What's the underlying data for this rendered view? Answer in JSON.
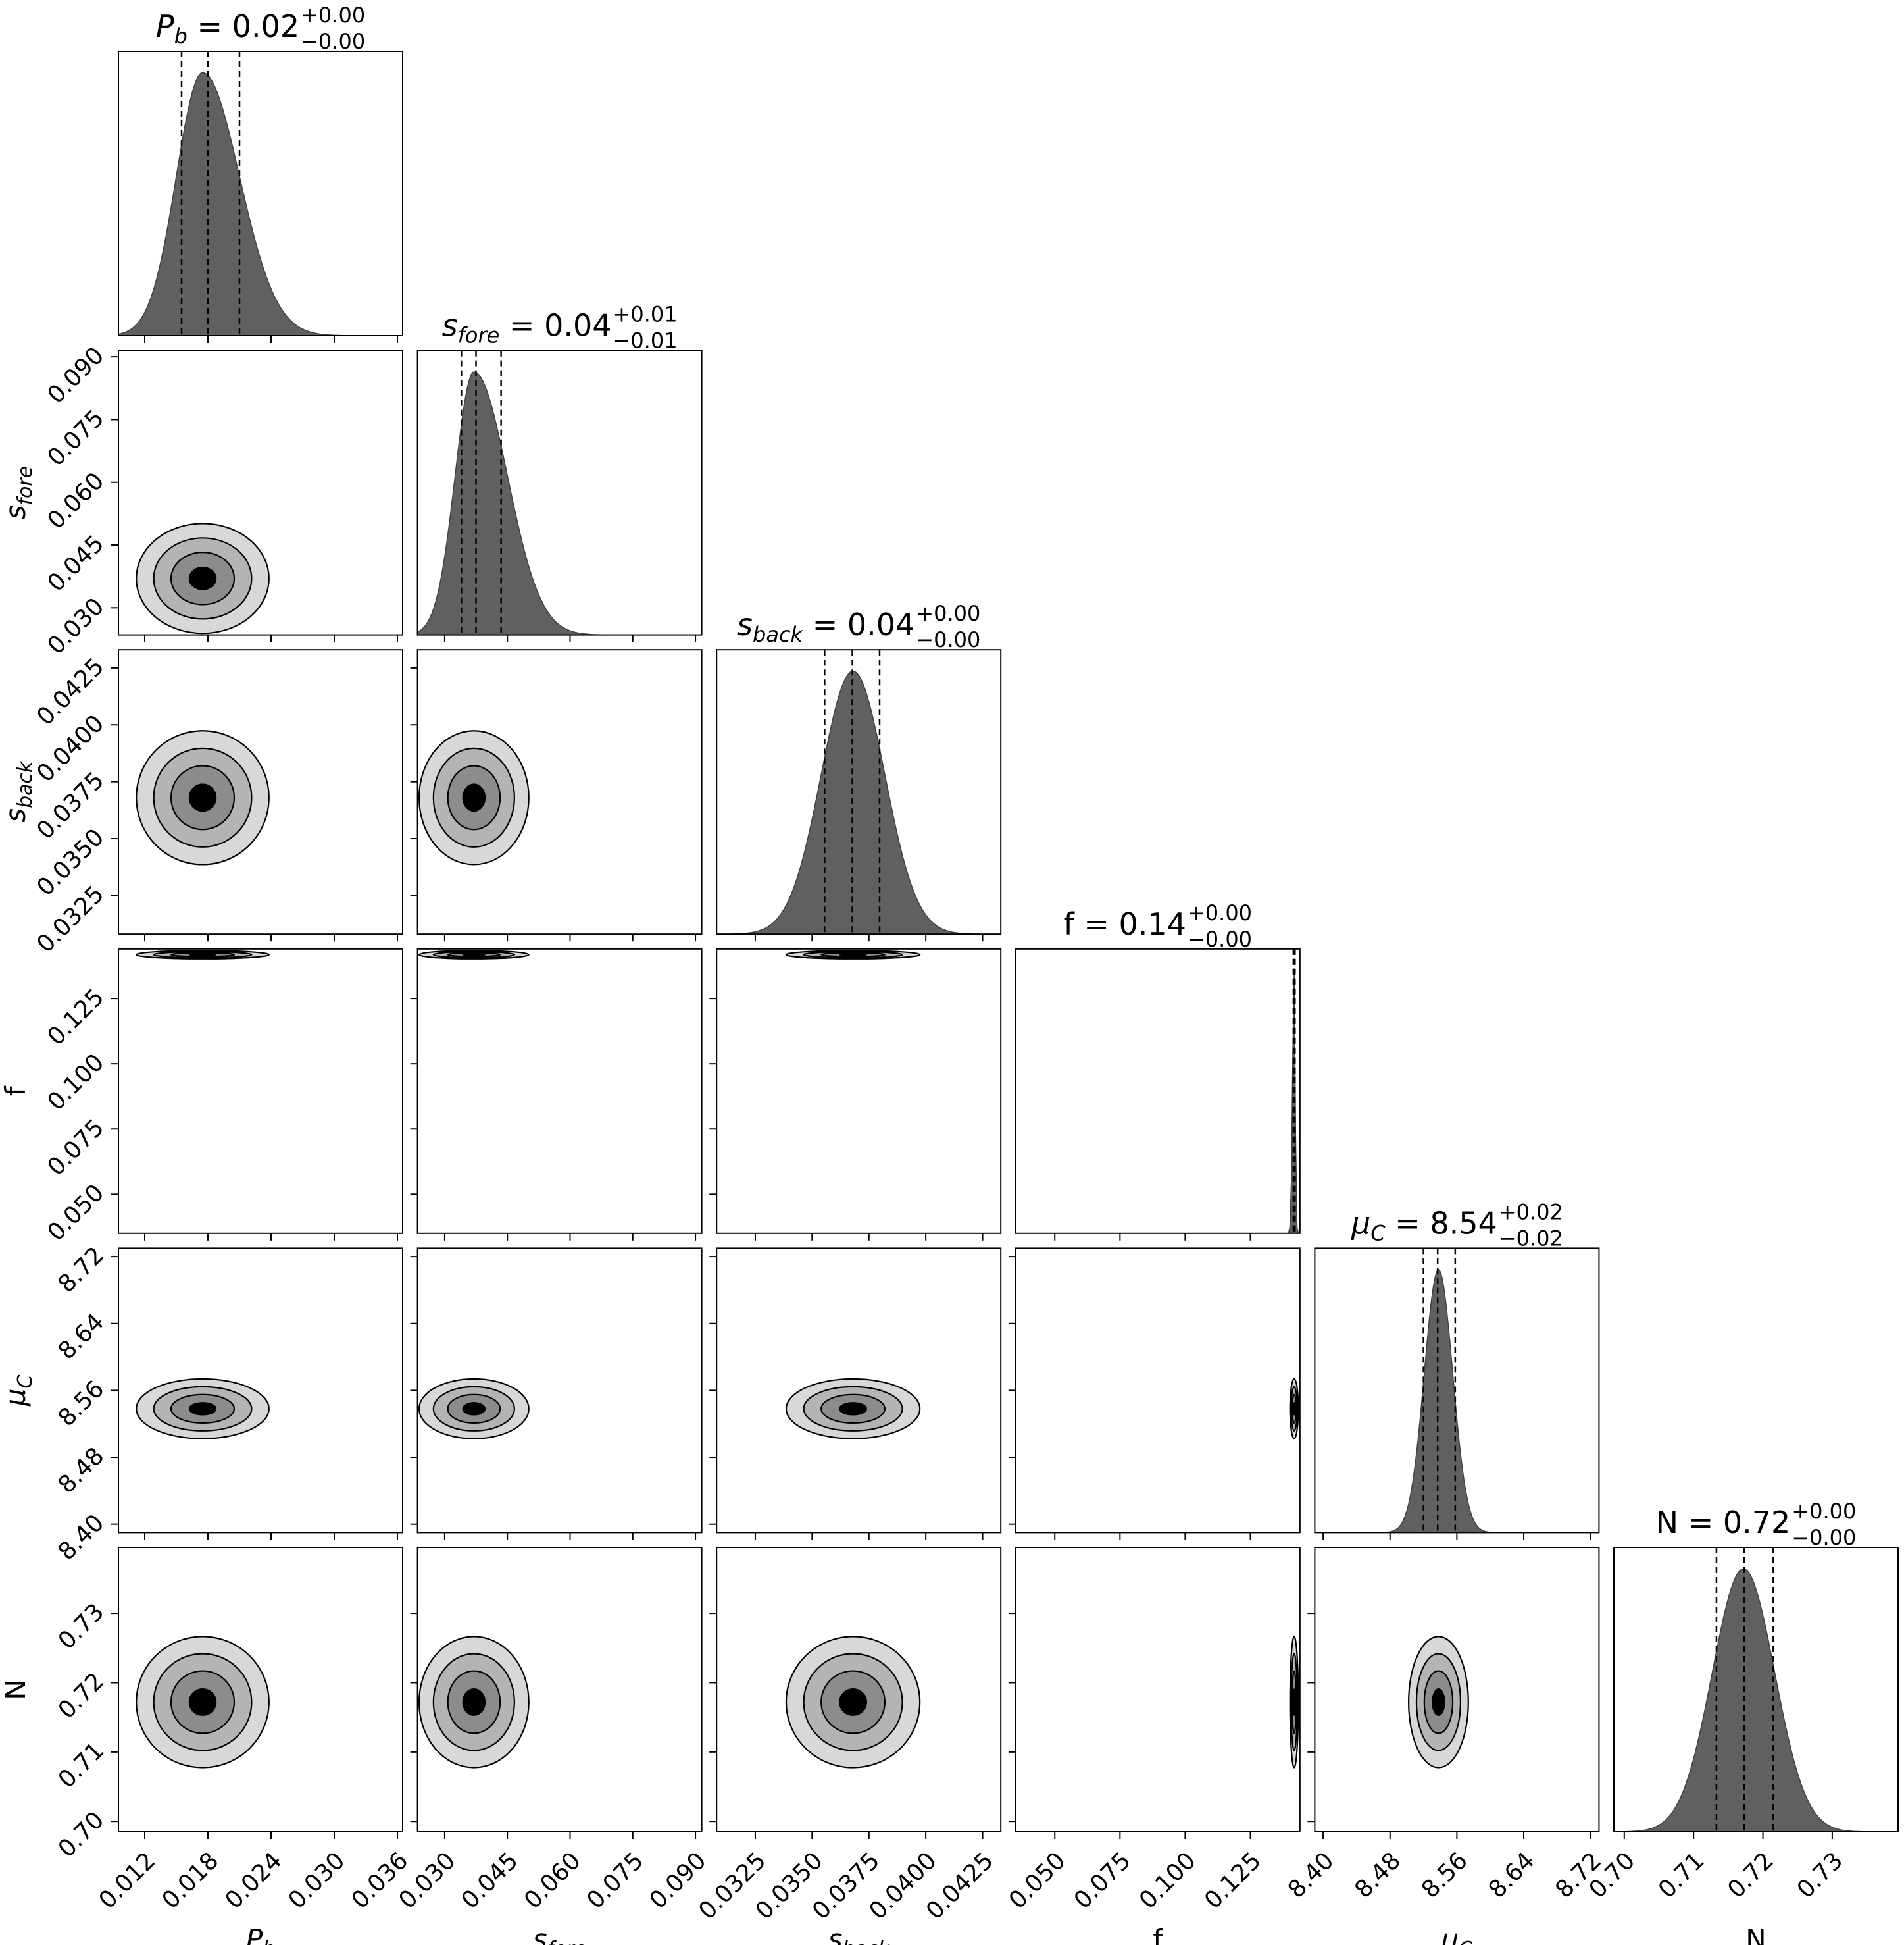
{
  "chart_data": {
    "type": "corner",
    "parameters": [
      {
        "key": "Pb",
        "label_sym": "P",
        "label_sub": "b",
        "title_val": "= 0.02",
        "plus": "+0.00",
        "minus": "−0.00",
        "range": [
          0.0095,
          0.0365
        ],
        "ticks": [
          "0.012",
          "0.018",
          "0.024",
          "0.030",
          "0.036"
        ],
        "tick_values": [
          0.012,
          0.018,
          0.024,
          0.03,
          0.036
        ],
        "quantiles": [
          0.0155,
          0.018,
          0.021
        ],
        "peak": 0.0175,
        "sigma_left": 0.0025,
        "sigma_right": 0.0035
      },
      {
        "key": "sfore",
        "label_sym": "s",
        "label_sub": "fore",
        "title_val": "= 0.04",
        "plus": "+0.01",
        "minus": "−0.01",
        "range": [
          0.0235,
          0.0915
        ],
        "ticks": [
          "0.030",
          "0.045",
          "0.060",
          "0.075",
          "0.090"
        ],
        "tick_values": [
          0.03,
          0.045,
          0.06,
          0.075,
          0.09
        ],
        "quantiles": [
          0.034,
          0.0375,
          0.0435
        ],
        "peak": 0.037,
        "sigma_left": 0.0045,
        "sigma_right": 0.008
      },
      {
        "key": "sback",
        "label_sym": "s",
        "label_sub": "back",
        "title_val": "= 0.04",
        "plus": "+0.00",
        "minus": "−0.00",
        "range": [
          0.0308,
          0.0433
        ],
        "ticks": [
          "0.0325",
          "0.0350",
          "0.0375",
          "0.0400",
          "0.0425"
        ],
        "tick_values": [
          0.0325,
          0.035,
          0.0375,
          0.04,
          0.0425
        ],
        "quantiles": [
          0.03555,
          0.03677,
          0.03797
        ],
        "peak": 0.0368,
        "sigma_left": 0.0014,
        "sigma_right": 0.0014
      },
      {
        "key": "f",
        "label_sym": "f",
        "label_sub": "",
        "title_val": "= 0.14",
        "plus": "+0.00",
        "minus": "−0.00",
        "range": [
          0.035,
          0.144
        ],
        "ticks": [
          "0.050",
          "0.075",
          "0.100",
          "0.125"
        ],
        "tick_values": [
          0.05,
          0.075,
          0.1,
          0.125
        ],
        "quantiles": [
          0.1415,
          0.1418,
          0.1421
        ],
        "peak": 0.1418,
        "sigma_left": 0.0006,
        "sigma_right": 0.0004
      },
      {
        "key": "muC",
        "label_sym": "μ",
        "label_sub": "C",
        "title_val": "= 8.54",
        "plus": "+0.02",
        "minus": "−0.02",
        "range": [
          8.39,
          8.73
        ],
        "ticks": [
          "8.40",
          "8.48",
          "8.56",
          "8.64",
          "8.72"
        ],
        "tick_values": [
          8.4,
          8.48,
          8.56,
          8.64,
          8.72
        ],
        "quantiles": [
          8.52,
          8.537,
          8.558
        ],
        "peak": 8.538,
        "sigma_left": 0.017,
        "sigma_right": 0.017
      },
      {
        "key": "N",
        "label_sym": "N",
        "label_sub": "",
        "title_val": "= 0.72",
        "plus": "+0.00",
        "minus": "−0.00",
        "range": [
          0.6985,
          0.7395
        ],
        "ticks": [
          "0.70",
          "0.71",
          "0.72",
          "0.73"
        ],
        "tick_values": [
          0.7,
          0.71,
          0.72,
          0.73
        ],
        "quantiles": [
          0.7133,
          0.7173,
          0.7215
        ],
        "peak": 0.7172,
        "sigma_left": 0.0045,
        "sigma_right": 0.0045
      }
    ]
  }
}
